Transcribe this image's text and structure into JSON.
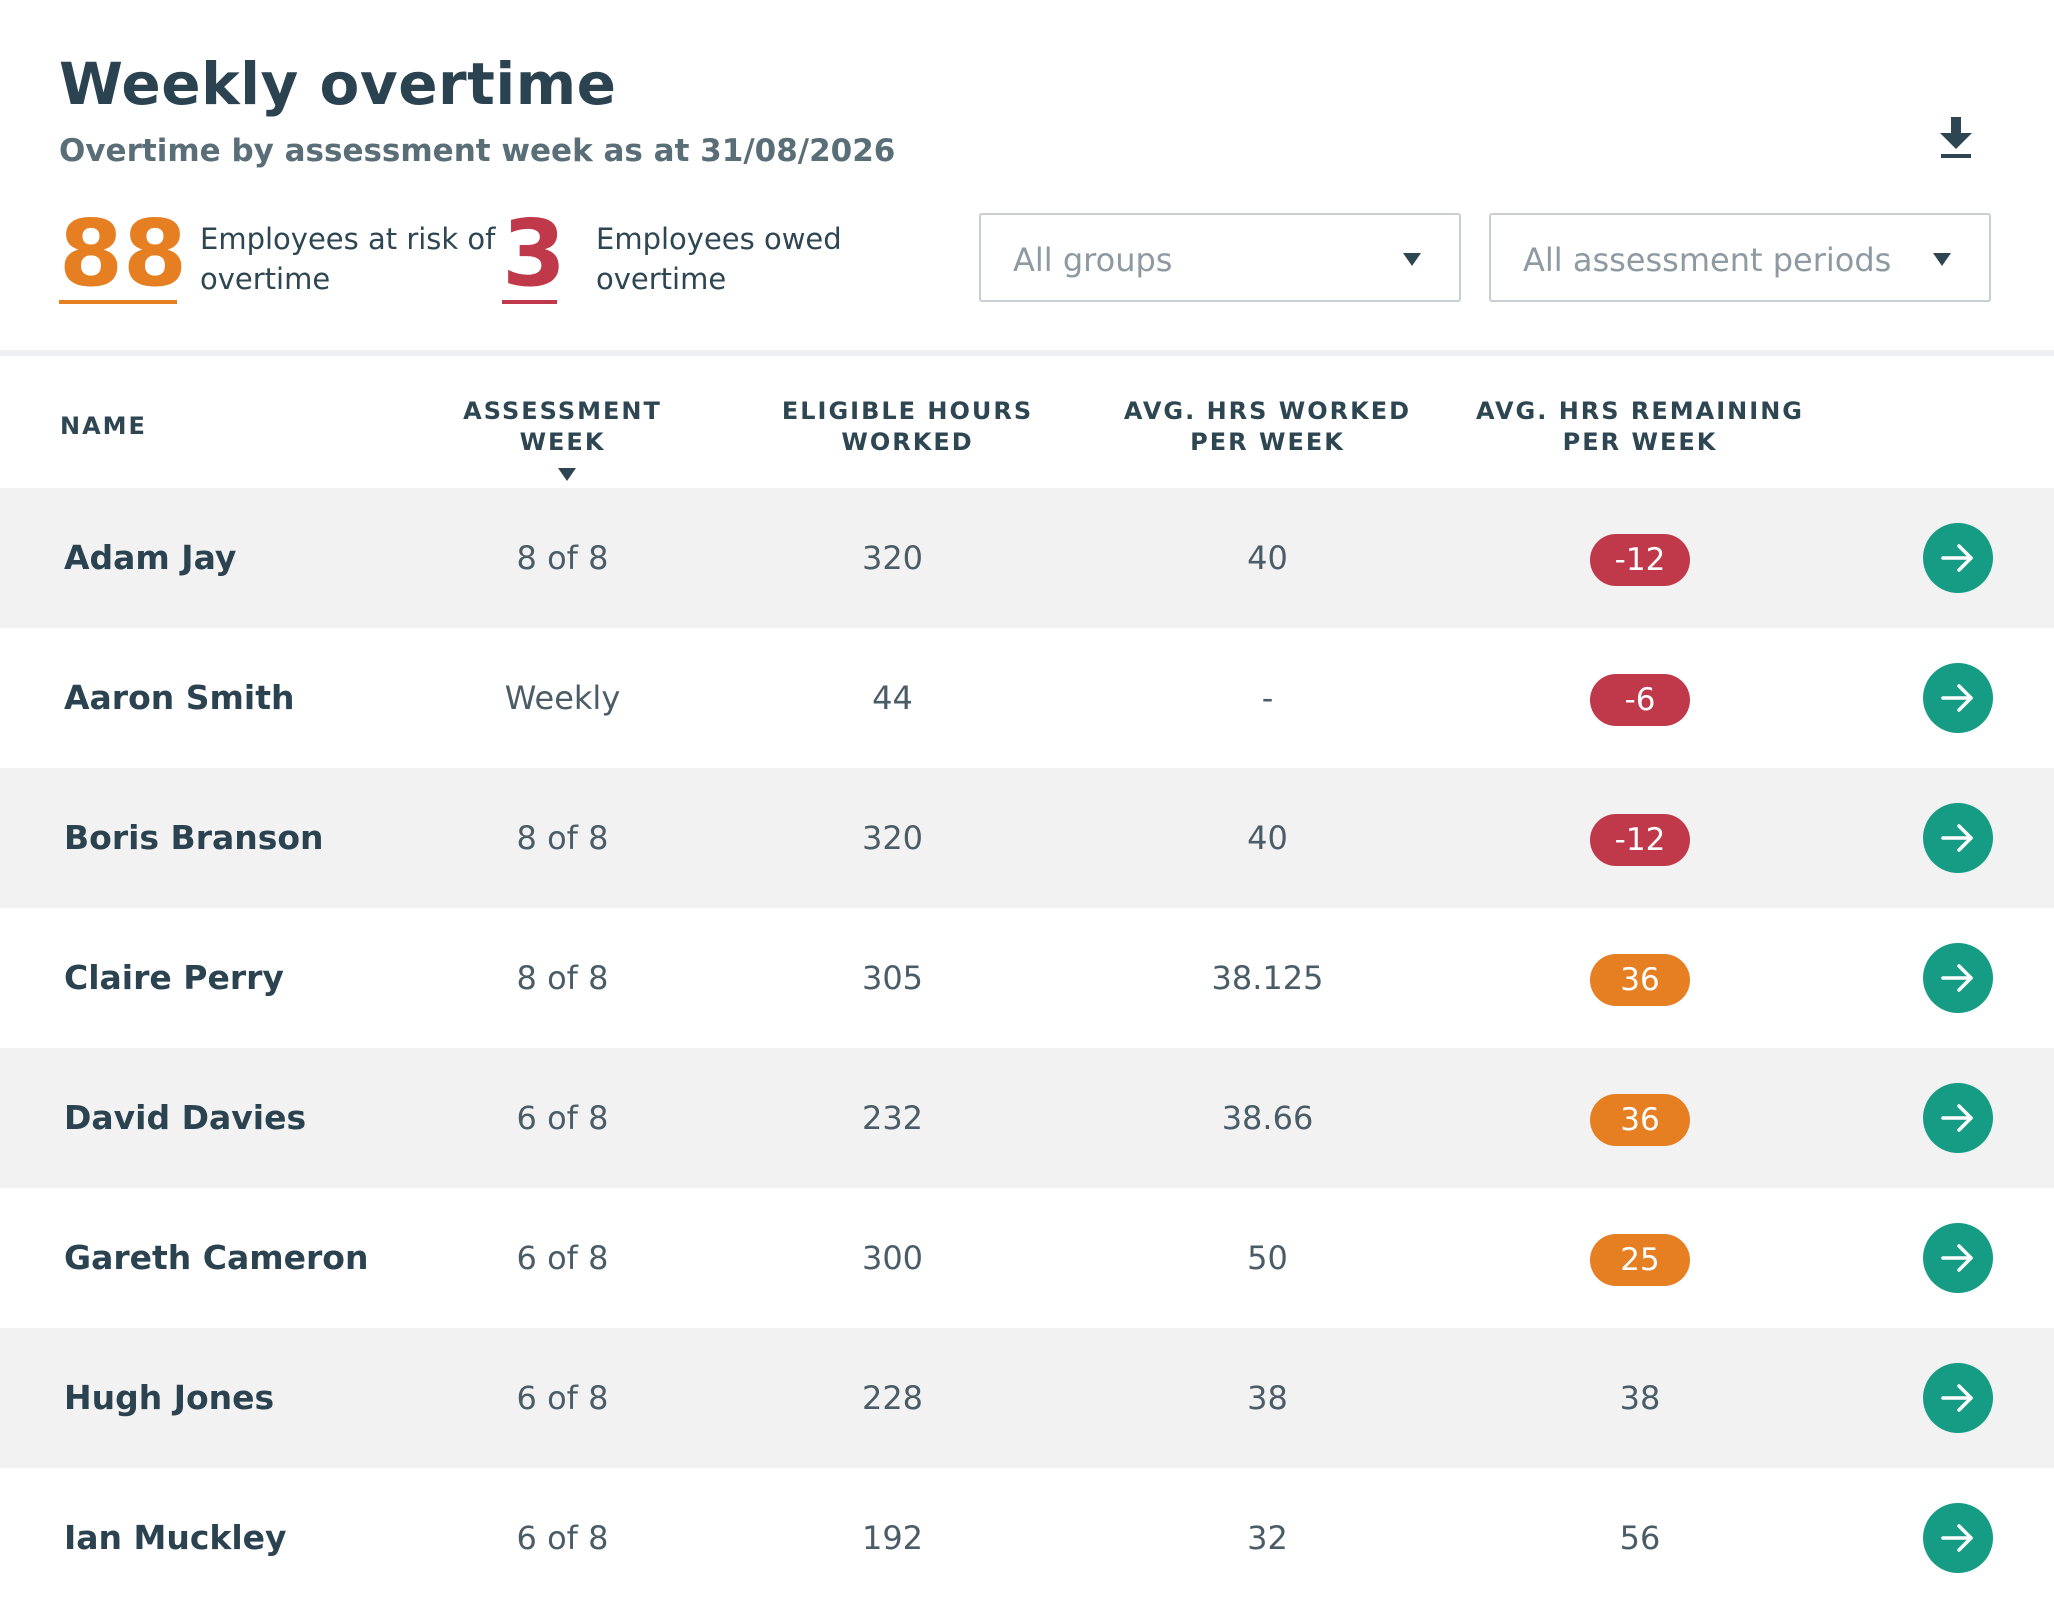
{
  "header": {
    "title": "Weekly overtime",
    "subtitle": "Overtime by assessment week as at 31/08/2026",
    "download_icon": "download-icon"
  },
  "kpis": [
    {
      "value": "88",
      "label": "Employees at risk of overtime",
      "color": "#e67e22"
    },
    {
      "value": "3",
      "label": "Employees owed overtime",
      "color": "#c0394a"
    }
  ],
  "filters": {
    "groups": "All groups",
    "periods": "All assessment periods"
  },
  "table": {
    "columns": [
      "NAME",
      "ASSESSMENT WEEK",
      "ELIGIBLE HOURS WORKED",
      "AVG. HRS WORKED PER WEEK",
      "AVG. HRS REMAINING PER WEEK"
    ],
    "rows": [
      {
        "name": "Adam Jay",
        "week": "8 of 8",
        "eligible": "320",
        "avg_worked": "40",
        "remaining": "-12",
        "status": "red"
      },
      {
        "name": "Aaron Smith",
        "week": "Weekly",
        "eligible": "44",
        "avg_worked": "-",
        "remaining": "-6",
        "status": "red"
      },
      {
        "name": "Boris Branson",
        "week": "8 of 8",
        "eligible": "320",
        "avg_worked": "40",
        "remaining": "-12",
        "status": "red"
      },
      {
        "name": "Claire Perry",
        "week": "8 of 8",
        "eligible": "305",
        "avg_worked": "38.125",
        "remaining": "36",
        "status": "orange"
      },
      {
        "name": "David Davies",
        "week": "6 of 8",
        "eligible": "232",
        "avg_worked": "38.66",
        "remaining": "36",
        "status": "orange"
      },
      {
        "name": "Gareth Cameron",
        "week": "6 of 8",
        "eligible": "300",
        "avg_worked": "50",
        "remaining": "25",
        "status": "orange"
      },
      {
        "name": "Hugh Jones",
        "week": "6 of 8",
        "eligible": "228",
        "avg_worked": "38",
        "remaining": "38",
        "status": "none"
      },
      {
        "name": "Ian Muckley",
        "week": "6 of 8",
        "eligible": "192",
        "avg_worked": "32",
        "remaining": "56",
        "status": "none"
      }
    ]
  },
  "colors": {
    "accent_teal": "#169c85",
    "risk_orange": "#e67e22",
    "owed_red": "#c0394a",
    "text_dark": "#2b4350"
  }
}
